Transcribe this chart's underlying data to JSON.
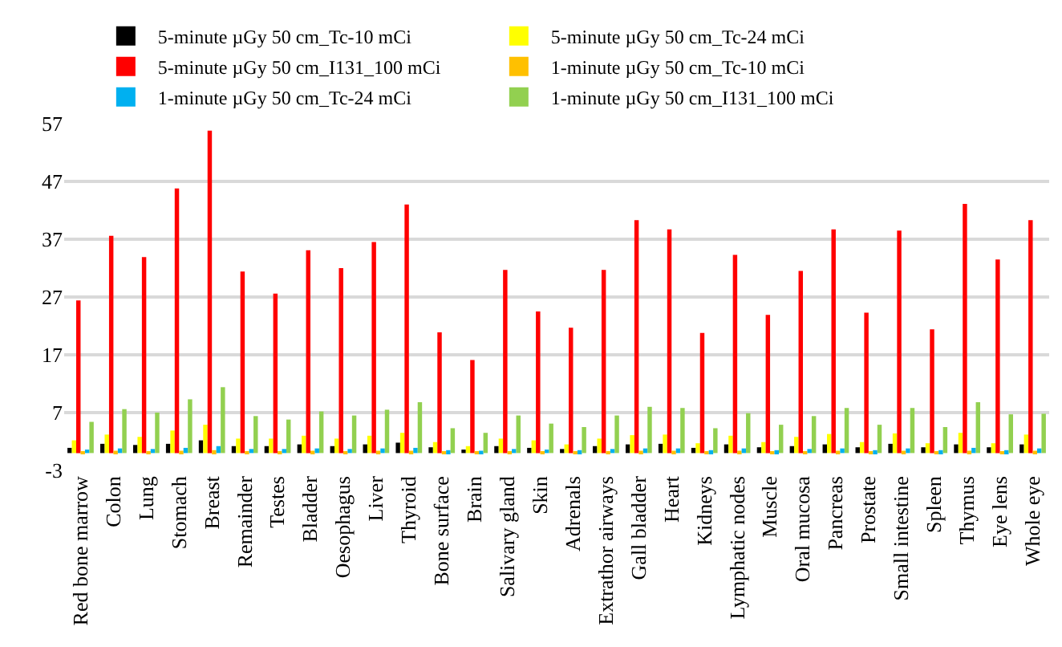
{
  "chart_data": {
    "type": "bar",
    "categories": [
      "Red bone marrow",
      "Colon",
      "Lung",
      "Stomach",
      "Breast",
      "Remainder",
      "Testes",
      "Bladder",
      "Oesophagus",
      "Liver",
      "Thyroid",
      "Bone surface",
      "Brain",
      "Salivary gland",
      "Skin",
      "Adrenals",
      "Extrathor airways",
      "Gall bladder",
      "Heart",
      "Kidneys",
      "Lymphatic nodes",
      "Muscle",
      "Oral mucosa",
      "Pancreas",
      "Prostate",
      "Small intestine",
      "Spleen",
      "Thymus",
      "Eye lens",
      "Whole eye"
    ],
    "series": [
      {
        "name": "5-minute µGy 50 cm_Tc-10 mCi",
        "color": "#000000",
        "values": [
          0.9,
          1.6,
          1.4,
          1.6,
          2.2,
          1.2,
          1.2,
          1.5,
          1.2,
          1.5,
          1.8,
          1.0,
          0.6,
          1.2,
          0.9,
          0.7,
          1.2,
          1.5,
          1.6,
          0.9,
          1.5,
          1.0,
          1.2,
          1.5,
          1.0,
          1.6,
          1.0,
          1.5,
          1.0,
          1.5
        ]
      },
      {
        "name": "5-minute µGy 50 cm_Tc-24 mCi",
        "color": "#ffff00",
        "values": [
          2.2,
          3.2,
          2.8,
          3.9,
          4.9,
          2.5,
          2.5,
          3.0,
          2.5,
          3.0,
          3.5,
          1.9,
          1.2,
          2.5,
          2.2,
          1.5,
          2.5,
          3.1,
          3.2,
          1.7,
          3.0,
          1.9,
          2.8,
          3.3,
          1.9,
          3.4,
          1.7,
          3.5,
          1.7,
          3.2
        ]
      },
      {
        "name": "5-minute µGy 50 cm_I131_100 mCi",
        "color": "#ff0000",
        "values": [
          26.4,
          37.6,
          33.9,
          45.8,
          55.8,
          31.4,
          27.6,
          35.1,
          32.0,
          36.5,
          43.0,
          20.9,
          16.1,
          31.7,
          24.5,
          21.7,
          31.7,
          40.3,
          38.7,
          20.8,
          34.3,
          23.9,
          31.5,
          38.7,
          24.3,
          38.5,
          21.4,
          43.1,
          33.5,
          40.3
        ]
      },
      {
        "name": "1-minute µGy 50 cm_Tc-10 mCi",
        "color": "#ffc000",
        "values": [
          0.3,
          0.4,
          0.3,
          0.4,
          0.5,
          0.3,
          0.3,
          0.4,
          0.3,
          0.4,
          0.4,
          0.3,
          0.2,
          0.3,
          0.3,
          0.2,
          0.3,
          0.4,
          0.4,
          0.3,
          0.4,
          0.3,
          0.3,
          0.4,
          0.3,
          0.4,
          0.3,
          0.4,
          0.3,
          0.4
        ]
      },
      {
        "name": "1-minute µGy 50 cm_Tc-24 mCi",
        "color": "#00b0f0",
        "values": [
          0.6,
          0.8,
          0.7,
          0.9,
          1.2,
          0.7,
          0.7,
          0.8,
          0.7,
          0.8,
          0.9,
          0.5,
          0.4,
          0.7,
          0.6,
          0.5,
          0.7,
          0.8,
          0.8,
          0.5,
          0.8,
          0.5,
          0.7,
          0.8,
          0.5,
          0.8,
          0.5,
          0.9,
          0.5,
          0.8
        ]
      },
      {
        "name": "1-minute µGy 50 cm_I131_100 mCi",
        "color": "#92d050",
        "values": [
          5.4,
          7.6,
          7.0,
          9.3,
          11.4,
          6.4,
          5.8,
          7.2,
          6.5,
          7.5,
          8.8,
          4.3,
          3.5,
          6.5,
          5.1,
          4.5,
          6.5,
          8.0,
          7.8,
          4.3,
          6.9,
          4.9,
          6.4,
          7.8,
          4.9,
          7.8,
          4.5,
          8.8,
          6.7,
          6.8
        ]
      }
    ],
    "ylim": [
      -3,
      57
    ],
    "yticks": [
      -3,
      7,
      17,
      27,
      37,
      47,
      57
    ],
    "grid": "y",
    "legend": "top"
  }
}
